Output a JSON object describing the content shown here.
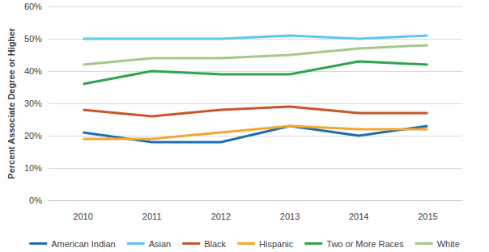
{
  "chart_data": {
    "type": "line",
    "y_label": "Percent Associate Degree or Higher",
    "categories": [
      "2010",
      "2011",
      "2012",
      "2013",
      "2014",
      "2015"
    ],
    "series": [
      {
        "name": "American Indian",
        "color": "#1f6db3",
        "values": [
          21,
          18,
          18,
          23,
          20,
          23
        ]
      },
      {
        "name": "Asian",
        "color": "#5ec6f2",
        "values": [
          50,
          50,
          50,
          51,
          50,
          51
        ]
      },
      {
        "name": "Black",
        "color": "#c9552b",
        "values": [
          28,
          26,
          28,
          29,
          27,
          27
        ]
      },
      {
        "name": "Hispanic",
        "color": "#f4a630",
        "values": [
          19,
          19,
          21,
          23,
          22,
          22
        ]
      },
      {
        "name": "Two or More Races",
        "color": "#2ea44f",
        "values": [
          36,
          40,
          39,
          39,
          43,
          42
        ]
      },
      {
        "name": "White",
        "color": "#a5c888",
        "values": [
          42,
          44,
          44,
          45,
          47,
          48
        ]
      }
    ],
    "ylim": [
      0,
      60
    ],
    "yticks": [
      {
        "value": 0,
        "label": "0%"
      },
      {
        "value": 10,
        "label": "10%"
      },
      {
        "value": 20,
        "label": "20%"
      },
      {
        "value": 30,
        "label": "30%"
      },
      {
        "value": 40,
        "label": "40%"
      },
      {
        "value": 50,
        "label": "50%"
      },
      {
        "value": 60,
        "label": "60%"
      }
    ],
    "grid": true,
    "legend": "bottom",
    "marker": "none"
  }
}
